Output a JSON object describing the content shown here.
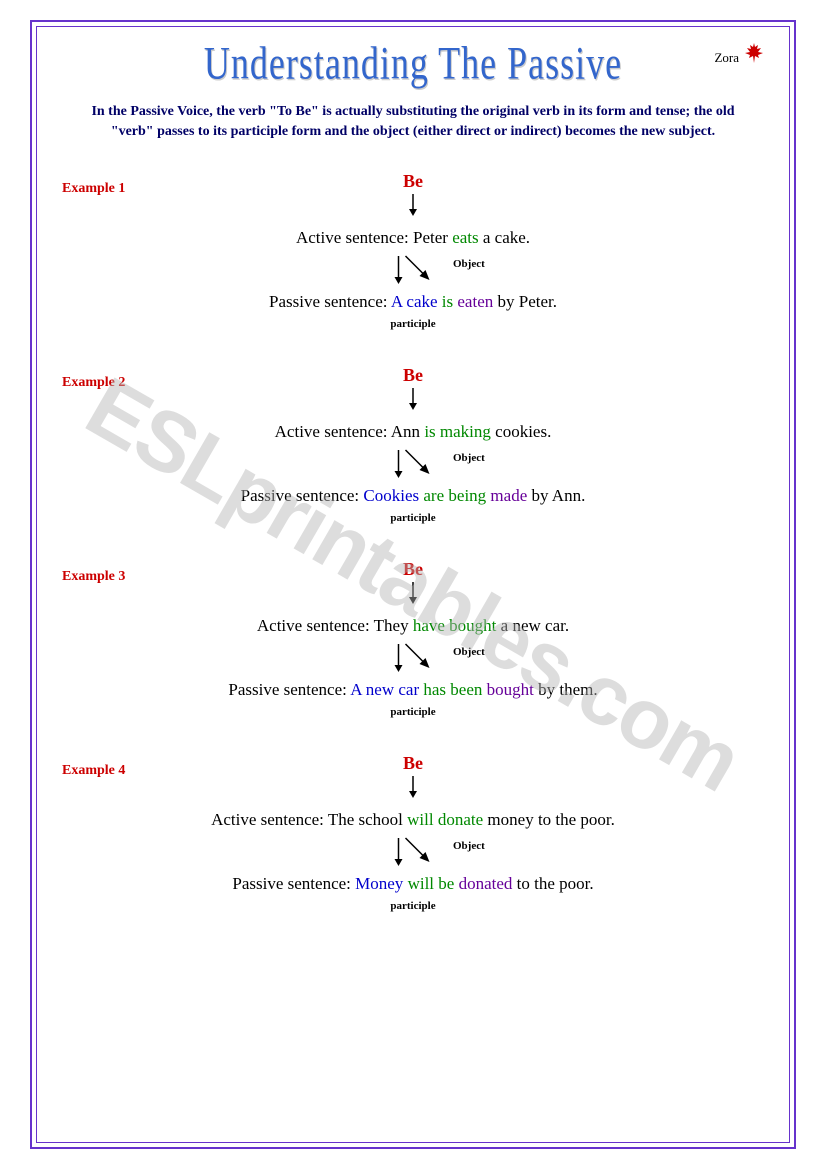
{
  "title": "Understanding The Passive",
  "author": "Zora",
  "intro": "In the Passive Voice, the verb \"To Be\" is actually substituting the original verb in its form and tense; the old \"verb\" passes to its participle form and the object (either direct or indirect) becomes the new subject.",
  "watermark": "ESLprintables.com",
  "labels": {
    "be": "Be",
    "active": "Active sentence:",
    "passive": "Passive sentence:",
    "object": "Object",
    "participle": "participle"
  },
  "examples": [
    {
      "label": "Example 1",
      "active": {
        "pre": "Peter ",
        "verb": "eats",
        "post": " a cake."
      },
      "passive": {
        "subj": "A cake",
        "be": " is ",
        "part": "eaten",
        "post": " by Peter."
      }
    },
    {
      "label": "Example 2",
      "active": {
        "pre": "Ann ",
        "verb": "is making",
        "post": " cookies."
      },
      "passive": {
        "subj": "Cookies",
        "be": " are being ",
        "part": "made",
        "post": " by Ann."
      }
    },
    {
      "label": "Example 3",
      "active": {
        "pre": "They ",
        "verb": "have bought",
        "post": " a new car."
      },
      "passive": {
        "subj": "A new car",
        "be": " has been ",
        "part": "bought",
        "post": " by them."
      }
    },
    {
      "label": "Example 4",
      "active": {
        "pre": "The school ",
        "verb": "will donate",
        "post": " money to the poor."
      },
      "passive": {
        "subj": "Money",
        "be": " will be ",
        "part": "donated",
        "post": " to the poor."
      }
    }
  ],
  "colors": {
    "border": "#6633cc",
    "title": "#3366cc",
    "red": "#cc0000",
    "intro": "#000066",
    "subject": "#0000cc",
    "verb": "#008800",
    "participle": "#660099"
  }
}
